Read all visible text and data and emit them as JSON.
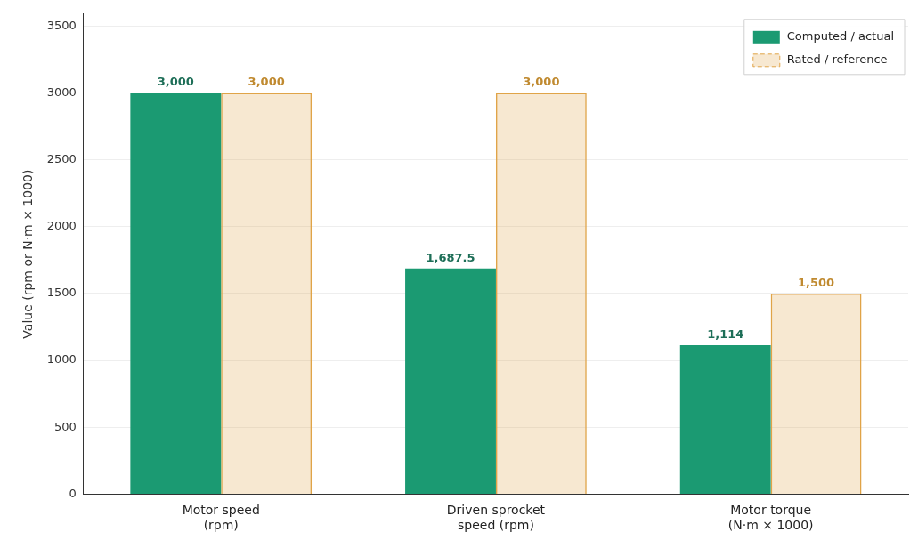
{
  "chart_data": {
    "type": "bar",
    "ylabel": "Value (rpm or N·m × 1000)",
    "categories": [
      "Motor speed\n(rpm)",
      "Driven sprocket\nspeed (rpm)",
      "Motor torque\n(N·m × 1000)"
    ],
    "series": [
      {
        "name": "Computed / actual",
        "color": "#1b9a72",
        "values": [
          3000,
          1687.5,
          1114
        ],
        "value_labels": [
          "3,000",
          "1,687.5",
          "1,114"
        ]
      },
      {
        "name": "Rated / reference",
        "color": "#e0a448",
        "line_style": "dashed",
        "values": [
          3000,
          3000,
          1500
        ],
        "value_labels": [
          "3,000",
          "3,000",
          "1,500"
        ]
      }
    ],
    "ylim": [
      0,
      3590
    ],
    "yticks": [
      0,
      500,
      1000,
      1500,
      2000,
      2500,
      3000,
      3500
    ],
    "grid": "y",
    "legend": "top right"
  }
}
